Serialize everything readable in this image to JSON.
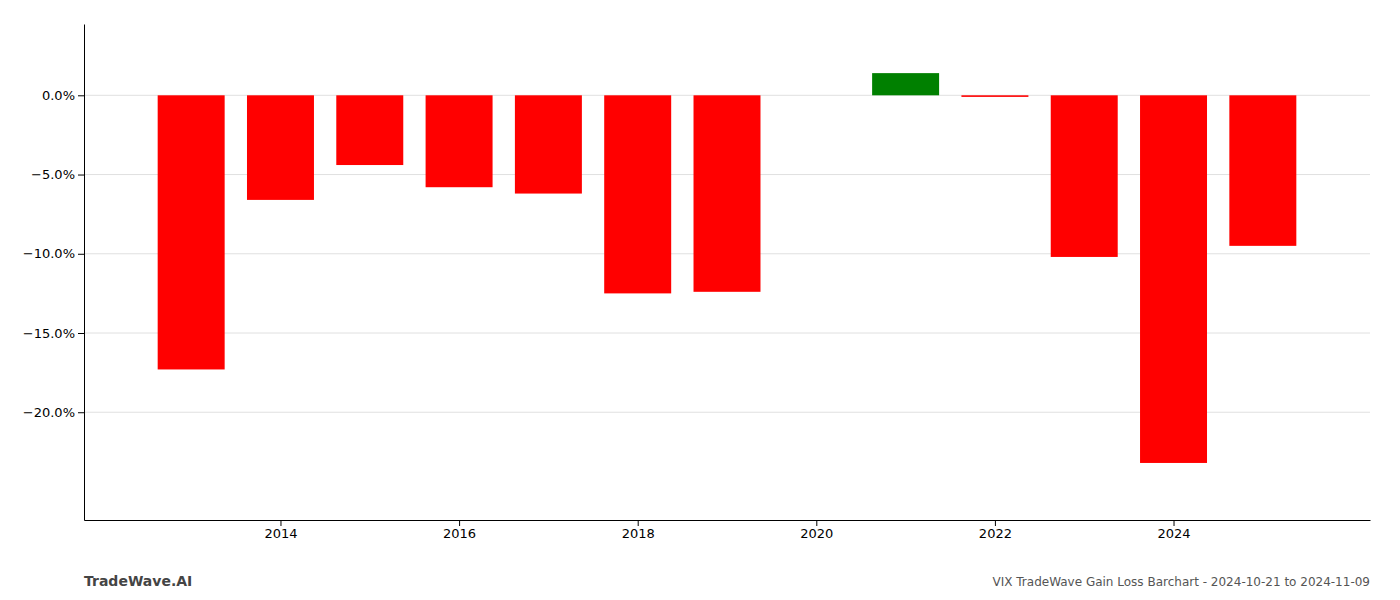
{
  "chart_data": {
    "type": "bar",
    "x": [
      2013,
      2014,
      2015,
      2016,
      2017,
      2018,
      2019,
      2021,
      2022,
      2023,
      2024,
      2025
    ],
    "values": [
      -0.173,
      -0.066,
      -0.044,
      -0.058,
      -0.062,
      -0.125,
      -0.124,
      0.014,
      -0.001,
      -0.102,
      -0.232,
      -0.095
    ],
    "colors": [
      "red",
      "red",
      "red",
      "red",
      "red",
      "red",
      "red",
      "green",
      "red",
      "red",
      "red",
      "red"
    ],
    "xlim": [
      2011.8,
      2026.2
    ],
    "ylim": [
      -0.268,
      0.045
    ],
    "xticks": [
      2014,
      2016,
      2018,
      2020,
      2022,
      2024
    ],
    "yticks": [
      {
        "value": 0.0,
        "label": "0.0%"
      },
      {
        "value": -0.05,
        "label": "−5.0%"
      },
      {
        "value": -0.1,
        "label": "−10.0%"
      },
      {
        "value": -0.15,
        "label": "−15.0%"
      },
      {
        "value": -0.2,
        "label": "−20.0%"
      }
    ],
    "grid": true,
    "annotations": [
      "TradeWave.AI",
      "VIX TradeWave Gain Loss Barchart - 2024-10-21 to 2024-11-09"
    ]
  }
}
